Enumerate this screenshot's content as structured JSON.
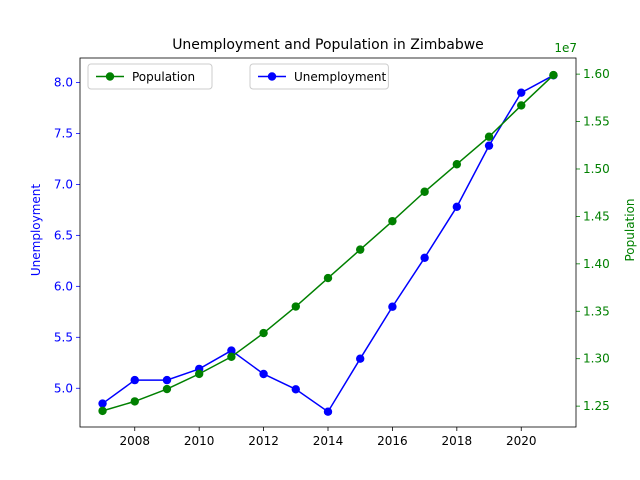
{
  "chart_data": {
    "type": "line",
    "title": "Unemployment and Population in Zimbabwe",
    "xlabel": "",
    "x": [
      2007,
      2008,
      2009,
      2010,
      2011,
      2012,
      2013,
      2014,
      2015,
      2016,
      2017,
      2018,
      2019,
      2020,
      2021
    ],
    "xlim": [
      2006.3,
      2021.7
    ],
    "xticks": [
      2008,
      2010,
      2012,
      2014,
      2016,
      2018,
      2020
    ],
    "grid": false,
    "series": [
      {
        "name": "Unemployment",
        "axis": "left",
        "color": "#0000ff",
        "values": [
          4.85,
          5.08,
          5.08,
          5.19,
          5.37,
          5.14,
          4.99,
          4.77,
          5.29,
          5.8,
          6.28,
          6.78,
          7.38,
          7.9,
          8.07
        ]
      },
      {
        "name": "Population",
        "axis": "right",
        "color": "#008000",
        "values": [
          12450000,
          12550000,
          12680000,
          12840000,
          13020000,
          13270000,
          13550000,
          13850000,
          14150000,
          14450000,
          14760000,
          15050000,
          15340000,
          15670000,
          15990000
        ]
      }
    ],
    "y_left": {
      "label": "Unemployment",
      "color": "#0000ff",
      "ylim": [
        4.62,
        8.24
      ],
      "ticks": [
        5.0,
        5.5,
        6.0,
        6.5,
        7.0,
        7.5,
        8.0
      ],
      "tick_labels": [
        "5.0",
        "5.5",
        "6.0",
        "6.5",
        "7.0",
        "7.5",
        "8.0"
      ]
    },
    "y_right": {
      "label": "Population",
      "color": "#008000",
      "offset_text": "1e7",
      "ylim": [
        12280000,
        16170000
      ],
      "ticks": [
        12500000,
        13000000,
        13500000,
        14000000,
        14500000,
        15000000,
        15500000,
        16000000
      ],
      "tick_labels": [
        "1.25",
        "1.30",
        "1.35",
        "1.40",
        "1.45",
        "1.50",
        "1.55",
        "1.60"
      ]
    },
    "legends": [
      {
        "placement": "upper-left",
        "entries": [
          "Population"
        ]
      },
      {
        "placement": "upper-center",
        "entries": [
          "Unemployment"
        ]
      }
    ]
  }
}
